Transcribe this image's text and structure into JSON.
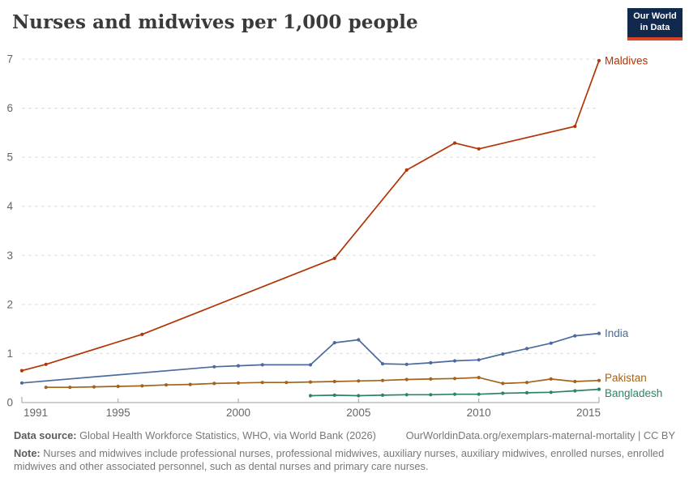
{
  "header": {
    "title": "Nurses and midwives per 1,000 people",
    "logo_line1": "Our World",
    "logo_line2": "in Data",
    "logo_bg": "#12294e",
    "logo_underline": "#dc4228"
  },
  "chart_data": {
    "type": "line",
    "title": "Nurses and midwives per 1,000 people",
    "xlabel": "",
    "ylabel": "",
    "x_range": [
      1991,
      2015
    ],
    "y_range": [
      0,
      7
    ],
    "x_ticks": [
      1991,
      1995,
      2000,
      2005,
      2010,
      2015
    ],
    "y_ticks": [
      0,
      1,
      2,
      3,
      4,
      5,
      6,
      7
    ],
    "grid": "horizontal-dashed",
    "legend_position": "right-of-line-ends",
    "series": [
      {
        "name": "Maldives",
        "color": "#B13507",
        "points": [
          [
            1991,
            0.65
          ],
          [
            1992,
            0.78
          ],
          [
            1996,
            1.39
          ],
          [
            2004,
            2.94
          ],
          [
            2007,
            4.74
          ],
          [
            2009,
            5.29
          ],
          [
            2010,
            5.17
          ],
          [
            2014,
            5.63
          ],
          [
            2015,
            6.97
          ]
        ]
      },
      {
        "name": "India",
        "color": "#4C6A9C",
        "points": [
          [
            1991,
            0.4
          ],
          [
            1999,
            0.73
          ],
          [
            2000,
            0.75
          ],
          [
            2001,
            0.77
          ],
          [
            2003,
            0.77
          ],
          [
            2004,
            1.22
          ],
          [
            2005,
            1.28
          ],
          [
            2006,
            0.79
          ],
          [
            2007,
            0.78
          ],
          [
            2008,
            0.81
          ],
          [
            2009,
            0.85
          ],
          [
            2010,
            0.87
          ],
          [
            2011,
            0.99
          ],
          [
            2012,
            1.1
          ],
          [
            2013,
            1.21
          ],
          [
            2014,
            1.36
          ],
          [
            2015,
            1.41
          ]
        ]
      },
      {
        "name": "Pakistan",
        "color": "#A2631A",
        "points": [
          [
            1992,
            0.31
          ],
          [
            1993,
            0.31
          ],
          [
            1994,
            0.32
          ],
          [
            1995,
            0.33
          ],
          [
            1996,
            0.34
          ],
          [
            1997,
            0.36
          ],
          [
            1998,
            0.37
          ],
          [
            1999,
            0.39
          ],
          [
            2000,
            0.4
          ],
          [
            2001,
            0.41
          ],
          [
            2002,
            0.41
          ],
          [
            2003,
            0.42
          ],
          [
            2004,
            0.43
          ],
          [
            2005,
            0.44
          ],
          [
            2006,
            0.45
          ],
          [
            2007,
            0.47
          ],
          [
            2008,
            0.48
          ],
          [
            2009,
            0.49
          ],
          [
            2010,
            0.51
          ],
          [
            2011,
            0.39
          ],
          [
            2012,
            0.41
          ],
          [
            2013,
            0.48
          ],
          [
            2014,
            0.43
          ],
          [
            2015,
            0.45
          ]
        ]
      },
      {
        "name": "Bangladesh",
        "color": "#2C8465",
        "points": [
          [
            2003,
            0.14
          ],
          [
            2004,
            0.15
          ],
          [
            2005,
            0.14
          ],
          [
            2006,
            0.15
          ],
          [
            2007,
            0.16
          ],
          [
            2008,
            0.16
          ],
          [
            2009,
            0.17
          ],
          [
            2010,
            0.17
          ],
          [
            2011,
            0.19
          ],
          [
            2012,
            0.2
          ],
          [
            2013,
            0.21
          ],
          [
            2014,
            0.24
          ],
          [
            2015,
            0.27
          ]
        ]
      }
    ],
    "axis_color": "#9e9e9e",
    "grid_color": "#dddddd",
    "tick_label_color": "#666666"
  },
  "footer": {
    "data_source_label": "Data source:",
    "data_source": "Global Health Workforce Statistics, WHO, via World Bank (2026)",
    "link": "OurWorldinData.org/exemplars-maternal-mortality | CC BY",
    "note_label": "Note:",
    "note": "Nurses and midwives include professional nurses, professional midwives, auxiliary nurses, auxiliary midwives, enrolled nurses, enrolled midwives and other associated personnel, such as dental nurses and primary care nurses."
  }
}
